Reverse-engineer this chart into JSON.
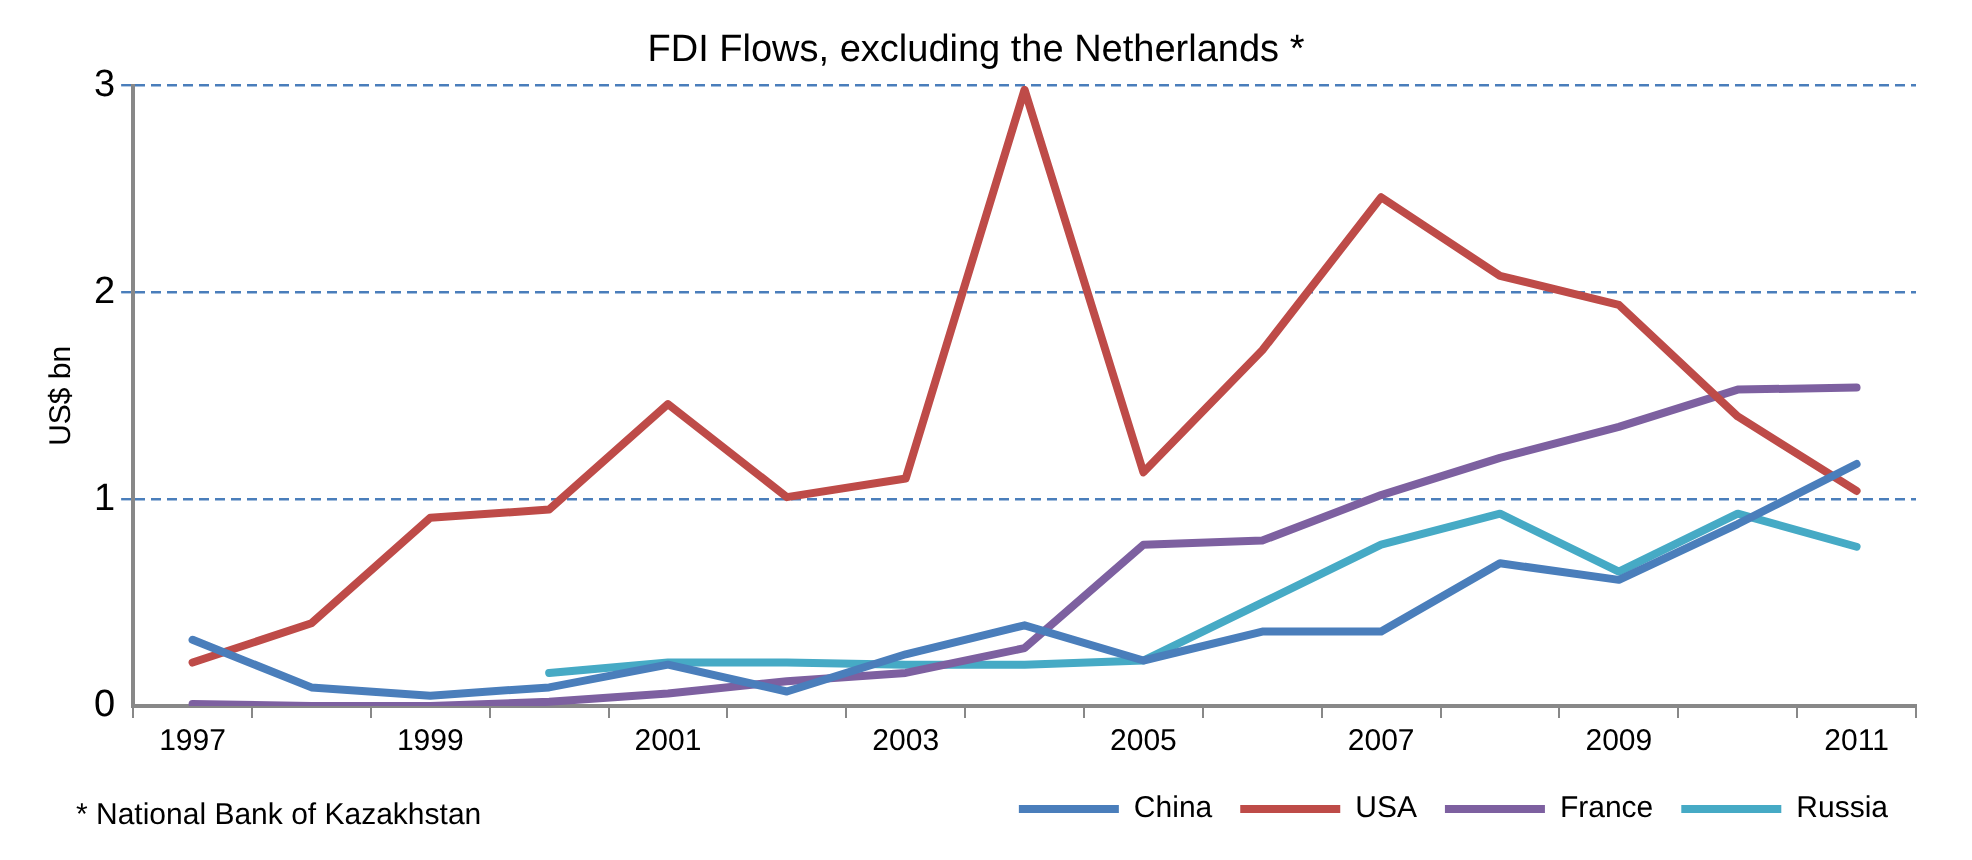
{
  "chart_data": {
    "type": "line",
    "title": "FDI Flows, excluding the Netherlands *",
    "ylabel": "US$ bn",
    "categories": [
      "1997",
      null,
      "1999",
      null,
      "2001",
      null,
      "2003",
      null,
      "2005",
      null,
      "2007",
      null,
      "2009",
      null,
      "2011"
    ],
    "series": [
      {
        "name": "China",
        "color": "#4a7ebb",
        "values": [
          0.32,
          0.09,
          0.05,
          0.09,
          0.2,
          0.07,
          0.25,
          0.39,
          0.22,
          0.36,
          0.36,
          0.69,
          0.61,
          0.88,
          1.17
        ]
      },
      {
        "name": "USA",
        "color": "#be4b48",
        "values": [
          0.21,
          0.4,
          0.91,
          0.95,
          1.46,
          1.01,
          1.1,
          2.98,
          1.13,
          1.72,
          2.46,
          2.08,
          1.94,
          1.4,
          1.04
        ]
      },
      {
        "name": "France",
        "color": "#7d60a0",
        "values": [
          0.01,
          0,
          0,
          0.02,
          0.06,
          0.12,
          0.16,
          0.28,
          0.78,
          0.8,
          1.02,
          1.2,
          1.35,
          1.53,
          1.54
        ]
      },
      {
        "name": "Russia",
        "color": "#46aac5",
        "values": [
          null,
          null,
          null,
          0.16,
          0.21,
          0.21,
          0.2,
          0.2,
          0.22,
          0.5,
          0.78,
          0.93,
          0.65,
          0.93,
          0.77
        ]
      }
    ],
    "ylim": [
      0,
      3
    ],
    "yticks": [
      0,
      1,
      2,
      3
    ],
    "grid": "y",
    "legend": "bottom right",
    "marker": "none",
    "line_style": "solid",
    "annotations": [
      "* National Bank of Kazakhstan"
    ]
  }
}
